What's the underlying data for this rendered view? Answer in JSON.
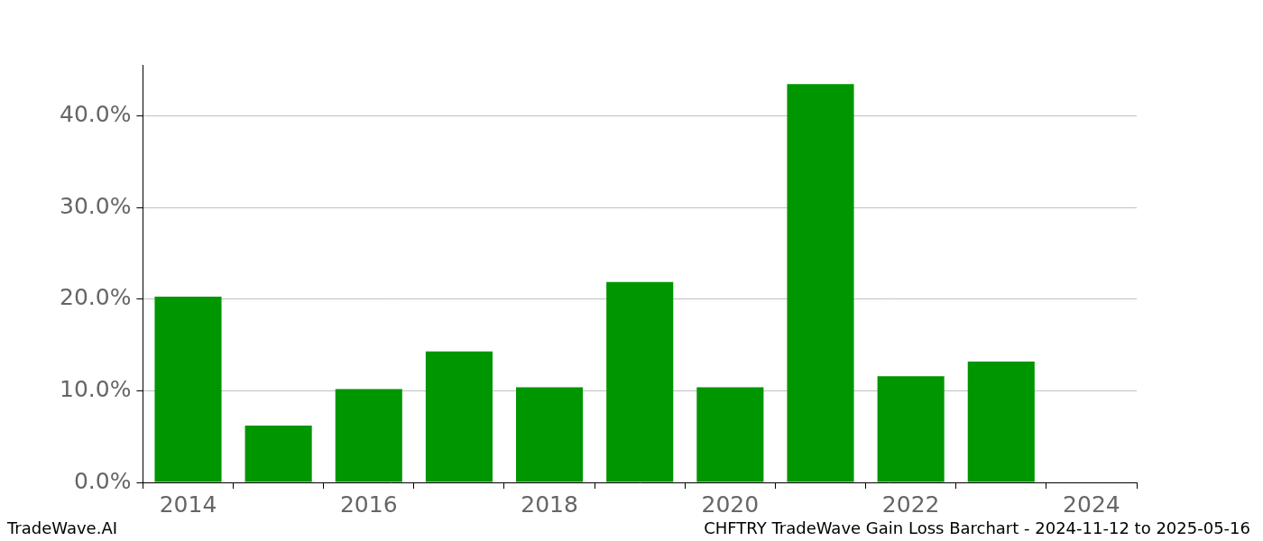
{
  "chart_data": {
    "type": "bar",
    "title": "CHFTRY TradeWave Gain Loss Barchart - 2024-11-12 to 2025-05-16",
    "source": "TradeWave.AI",
    "categories": [
      "2014",
      null,
      "2016",
      null,
      "2018",
      null,
      "2020",
      null,
      "2022",
      null,
      "2024"
    ],
    "values": [
      20.3,
      6.2,
      10.2,
      14.3,
      10.4,
      21.9,
      10.4,
      43.5,
      11.6,
      13.2,
      null
    ],
    "color": "#009600",
    "ylim": [
      0,
      45.6
    ],
    "yticks": [
      {
        "value": 0,
        "label": "0.0%"
      },
      {
        "value": 10,
        "label": "10.0%"
      },
      {
        "value": 20,
        "label": "20.0%"
      },
      {
        "value": 30,
        "label": "30.0%"
      },
      {
        "value": 40,
        "label": "40.0%"
      }
    ],
    "grid": "y"
  }
}
